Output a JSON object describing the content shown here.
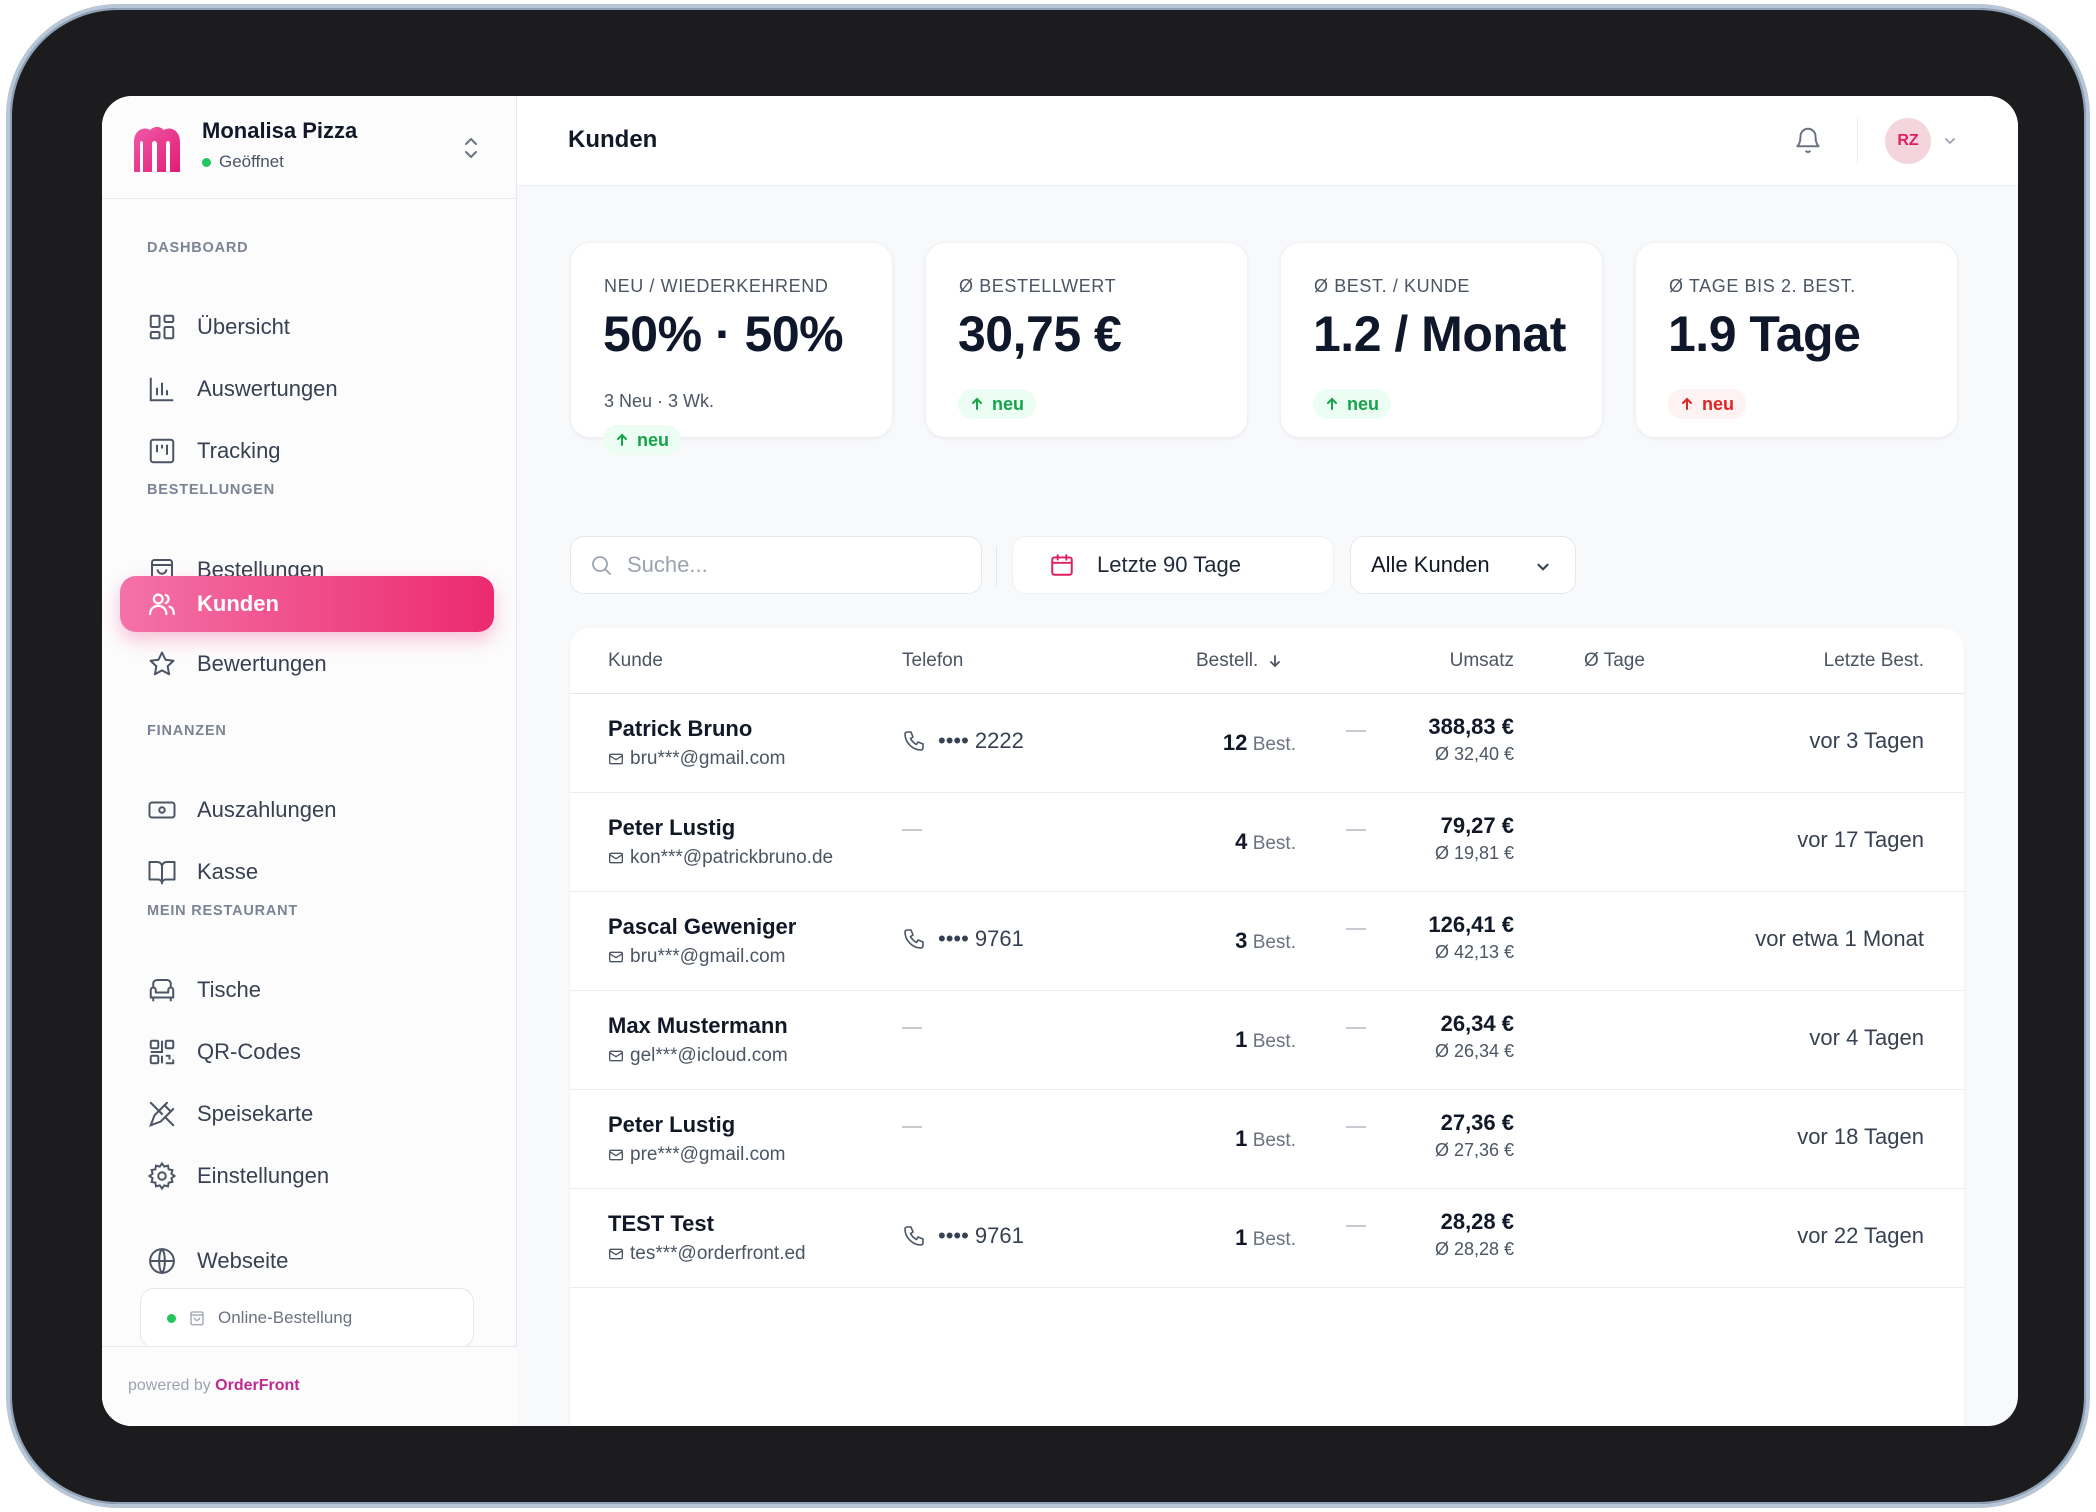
{
  "brand": {
    "name": "Monalisa Pizza",
    "status": "Geöffnet"
  },
  "sidebar": {
    "sections": [
      {
        "label": "DASHBOARD",
        "items": [
          {
            "label": "Übersicht",
            "icon": "layout-grid-icon"
          },
          {
            "label": "Auswertungen",
            "icon": "bar-chart-icon"
          },
          {
            "label": "Tracking",
            "icon": "kanban-icon"
          }
        ]
      },
      {
        "label": "BESTELLUNGEN",
        "items": [
          {
            "label": "Bestellungen",
            "icon": "shopping-bag-icon"
          },
          {
            "label": "Kunden",
            "icon": "users-icon",
            "active": true
          },
          {
            "label": "Bewertungen",
            "icon": "star-icon"
          }
        ]
      },
      {
        "label": "FINANZEN",
        "items": [
          {
            "label": "Auszahlungen",
            "icon": "banknote-icon"
          },
          {
            "label": "Kasse",
            "icon": "book-open-icon"
          }
        ]
      },
      {
        "label": "MEIN RESTAURANT",
        "items": [
          {
            "label": "Tische",
            "icon": "armchair-icon"
          },
          {
            "label": "QR-Codes",
            "icon": "qr-code-icon"
          },
          {
            "label": "Speisekarte",
            "icon": "utensils-crossed-icon"
          },
          {
            "label": "Einstellungen",
            "icon": "settings-icon"
          }
        ]
      }
    ],
    "website": {
      "label": "Webseite",
      "icon": "globe-icon"
    },
    "online_order": "Online-Bestellung",
    "powered_prefix": "powered by",
    "powered_brand": "OrderFront"
  },
  "header": {
    "title": "Kunden",
    "avatar_initials": "RZ"
  },
  "stats": [
    {
      "label": "NEU / WIEDERKEHREND",
      "value": "50% · 50%",
      "sub": "3 Neu · 3 Wk.",
      "badge": "neu",
      "trend": "up",
      "tone": "green"
    },
    {
      "label": "Ø BESTELLWERT",
      "value": "30,75 €",
      "sub": "",
      "badge": "neu",
      "trend": "up",
      "tone": "green"
    },
    {
      "label": "Ø BEST. / KUNDE",
      "value": "1.2 / Monat",
      "sub": "",
      "badge": "neu",
      "trend": "up",
      "tone": "green"
    },
    {
      "label": "Ø TAGE BIS 2. BEST.",
      "value": "1.9 Tage",
      "sub": "",
      "badge": "neu",
      "trend": "up",
      "tone": "red"
    }
  ],
  "filters": {
    "search_placeholder": "Suche...",
    "date_range": "Letzte 90 Tage",
    "customer_filter": "Alle Kunden"
  },
  "table": {
    "columns": {
      "customer": "Kunde",
      "phone": "Telefon",
      "orders": "Bestell.",
      "revenue": "Umsatz",
      "days": "Ø Tage",
      "last": "Letzte Best."
    },
    "orders_suffix": "Best.",
    "rows": [
      {
        "name": "Patrick Bruno",
        "email": "bru***@gmail.com",
        "phone": "•••• 2222",
        "orders": "12",
        "revenue": "388,83 €",
        "avg": "Ø 32,40 €",
        "last": "vor 3 Tagen"
      },
      {
        "name": "Peter Lustig",
        "email": "kon***@patrickbruno.de",
        "phone": "",
        "orders": "4",
        "revenue": "79,27 €",
        "avg": "Ø 19,81 €",
        "last": "vor 17 Tagen"
      },
      {
        "name": "Pascal Geweniger",
        "email": "bru***@gmail.com",
        "phone": "•••• 9761",
        "orders": "3",
        "revenue": "126,41 €",
        "avg": "Ø 42,13 €",
        "last": "vor etwa 1 Monat"
      },
      {
        "name": "Max Mustermann",
        "email": "gel***@icloud.com",
        "phone": "",
        "orders": "1",
        "revenue": "26,34 €",
        "avg": "Ø 26,34 €",
        "last": "vor 4 Tagen"
      },
      {
        "name": "Peter Lustig",
        "email": "pre***@gmail.com",
        "phone": "",
        "orders": "1",
        "revenue": "27,36 €",
        "avg": "Ø 27,36 €",
        "last": "vor 18 Tagen"
      },
      {
        "name": "TEST Test",
        "email": "tes***@orderfront.ed",
        "phone": "•••• 9761",
        "orders": "1",
        "revenue": "28,28 €",
        "avg": "Ø 28,28 €",
        "last": "vor 22 Tagen"
      }
    ]
  },
  "colors": {
    "accent": "#ec2a6e",
    "accent_light": "#f472a8",
    "positive": "#16a34a",
    "negative": "#dc2626"
  }
}
